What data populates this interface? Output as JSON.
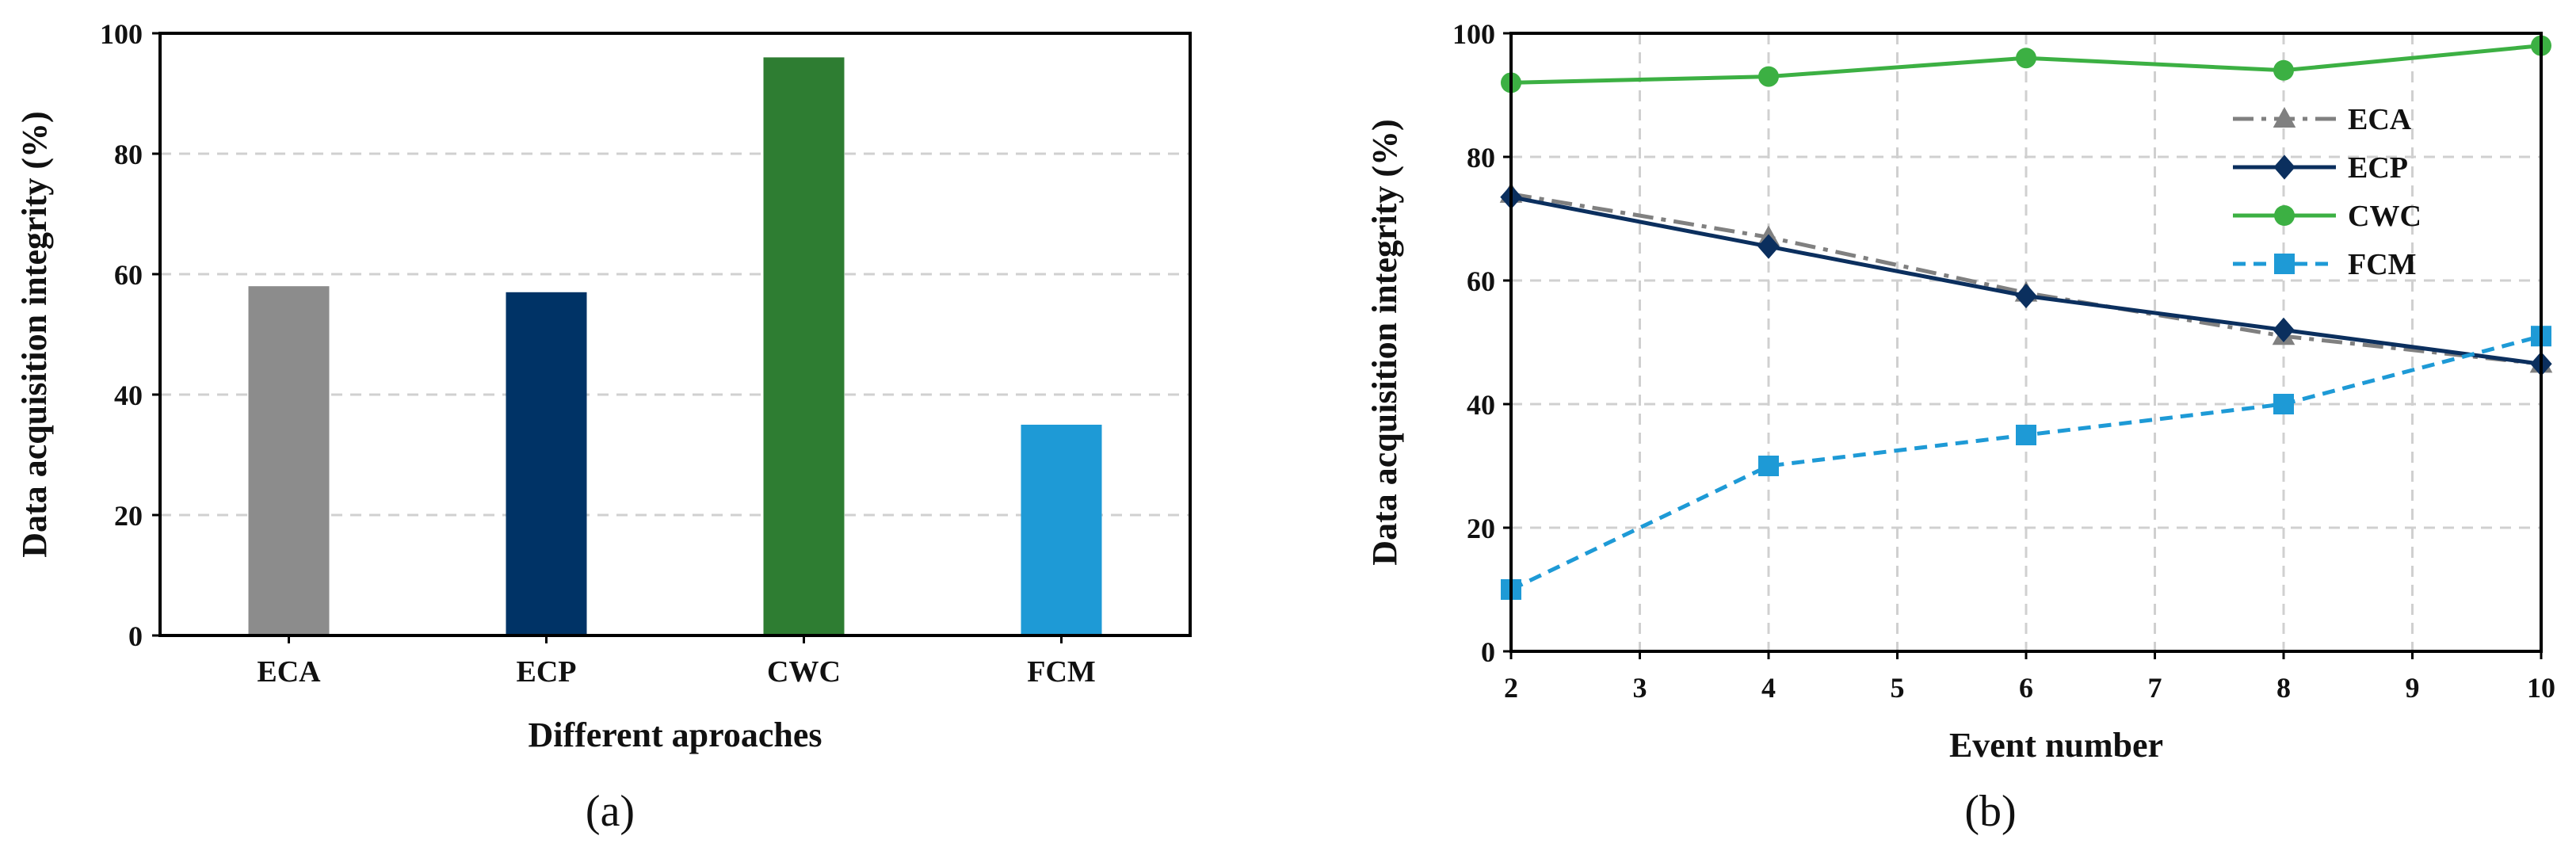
{
  "chart_data": [
    {
      "type": "bar",
      "panel_label": "(a)",
      "title": "",
      "xlabel": "Different aproaches",
      "ylabel": "Data acquisition integrity (%)",
      "categories": [
        "ECA",
        "ECP",
        "CWC",
        "FCM"
      ],
      "values": [
        58,
        57,
        96,
        35
      ],
      "colors": [
        "#8c8c8c",
        "#003366",
        "#2e7d32",
        "#1e9ad6"
      ],
      "ylim": [
        0,
        100
      ],
      "yticks": [
        "0",
        "20",
        "40",
        "60",
        "80",
        "100"
      ],
      "grid": "horizontal dashed"
    },
    {
      "type": "line",
      "panel_label": "(b)",
      "title": "",
      "xlabel": "Event  number",
      "ylabel": "Data  acquisition integrity (%)",
      "x": [
        2,
        4,
        6,
        8,
        10
      ],
      "xlim": [
        2,
        10
      ],
      "ylim": [
        0,
        100
      ],
      "xticks": [
        "2",
        "3",
        "4",
        "5",
        "6",
        "7",
        "8",
        "9",
        "10"
      ],
      "yticks": [
        "0",
        "20",
        "40",
        "60",
        "80",
        "100"
      ],
      "legend_position": "top-right",
      "grid": "both dashed",
      "series": [
        {
          "name": "ECA",
          "values": [
            74,
            67,
            58,
            51,
            46.5
          ],
          "color": "#808080",
          "marker": "triangle",
          "dash": "dash-dot"
        },
        {
          "name": "ECP",
          "values": [
            73.5,
            65.5,
            57.5,
            52,
            46.5
          ],
          "color": "#0b2f5e",
          "marker": "diamond",
          "dash": "solid"
        },
        {
          "name": "CWC",
          "values": [
            92,
            93,
            96,
            94,
            98
          ],
          "color": "#3cb043",
          "marker": "circle",
          "dash": "solid"
        },
        {
          "name": "FCM",
          "values": [
            10,
            30,
            35,
            40,
            51
          ],
          "color": "#1e9ad6",
          "marker": "square",
          "dash": "dashed"
        }
      ]
    }
  ]
}
